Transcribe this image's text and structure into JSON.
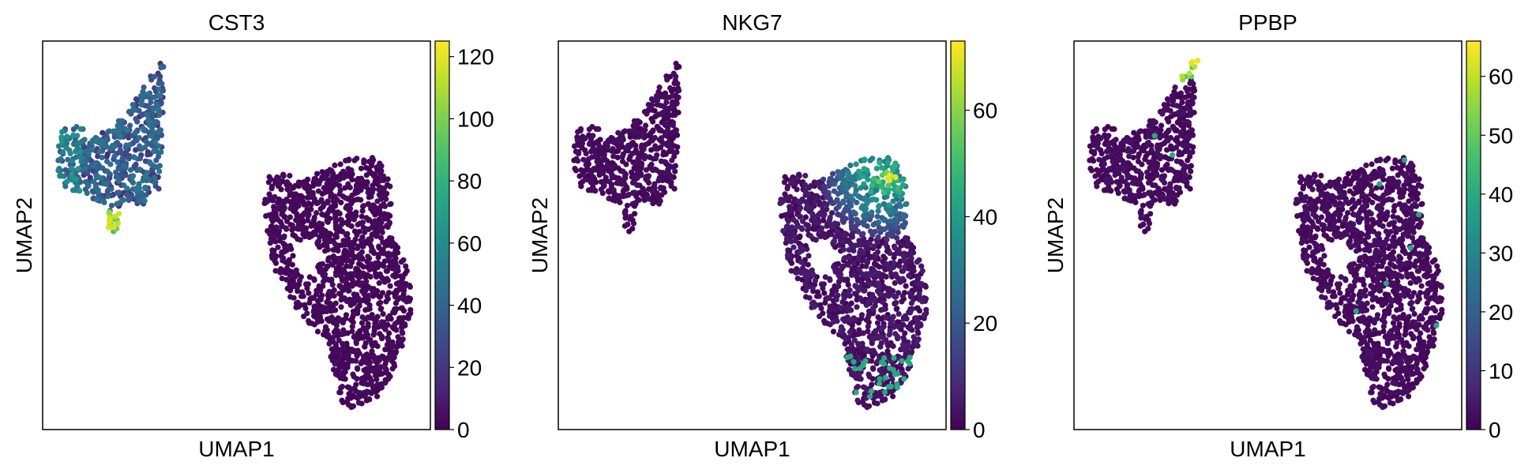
{
  "chart_data": [
    {
      "type": "scatter",
      "title": "CST3",
      "xlabel": "UMAP1",
      "ylabel": "UMAP2",
      "colormap": "viridis",
      "colorbar_range": [
        0,
        125
      ],
      "colorbar_ticks": [
        0,
        20,
        40,
        60,
        80,
        100,
        120
      ],
      "grid": false,
      "x_ticks_shown": false,
      "y_ticks_shown": false,
      "hotspots": [
        {
          "region": "upper-left cluster, left edge",
          "value": 55
        },
        {
          "region": "upper-left cluster, lower tail",
          "value": 118
        }
      ]
    },
    {
      "type": "scatter",
      "title": "NKG7",
      "xlabel": "UMAP1",
      "ylabel": "UMAP2",
      "colormap": "viridis",
      "colorbar_range": [
        0,
        73
      ],
      "colorbar_ticks": [
        0,
        20,
        40,
        60
      ],
      "grid": false,
      "x_ticks_shown": false,
      "y_ticks_shown": false,
      "hotspots": [
        {
          "region": "right cluster, top lobe",
          "value": 70
        }
      ]
    },
    {
      "type": "scatter",
      "title": "PPBP",
      "xlabel": "UMAP1",
      "ylabel": "UMAP2",
      "colormap": "viridis",
      "colorbar_range": [
        0,
        66
      ],
      "colorbar_ticks": [
        0,
        10,
        20,
        30,
        40,
        50,
        60
      ],
      "grid": false,
      "x_ticks_shown": false,
      "y_ticks_shown": false,
      "hotspots": [
        {
          "region": "upper-left cluster, top tip",
          "value": 64
        }
      ]
    }
  ],
  "colors": {
    "background": "#ffffff",
    "axes": "#000000",
    "viridis_low": "#440154",
    "viridis_mid": "#21918c",
    "viridis_high": "#fde725"
  }
}
